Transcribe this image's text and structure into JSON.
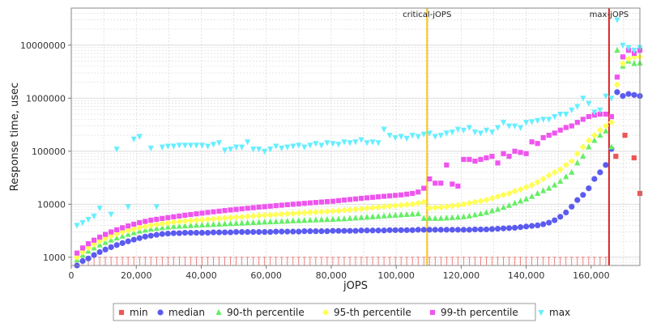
{
  "chart_data": {
    "type": "scatter",
    "xlabel": "jOPS",
    "ylabel": "Response time, usec",
    "xlim": [
      0,
      175000
    ],
    "ylim": [
      700,
      50000000
    ],
    "yscale": "log",
    "grid": true,
    "legend_placement": "bottom",
    "x_ticks": [
      0,
      20000,
      40000,
      60000,
      80000,
      100000,
      120000,
      140000,
      160000
    ],
    "x_tick_labels": [
      "0",
      "20,000",
      "40,000",
      "60,000",
      "80,000",
      "100,000",
      "120,000",
      "140,000",
      "160,000"
    ],
    "y_ticks": [
      1000,
      10000,
      100000,
      1000000,
      10000000
    ],
    "y_tick_labels": [
      "1000",
      "10000",
      "100000",
      "1000000",
      "10000000"
    ],
    "vlines": [
      {
        "label": "critical-jOPS",
        "x": 109500,
        "color": "#f5c518"
      },
      {
        "label": "max-jOPS",
        "x": 165500,
        "color": "#dd2222"
      }
    ],
    "series": [
      {
        "name": "min",
        "marker": "square",
        "color": "#ee5555",
        "x": [
          167600,
          170400,
          173200,
          175000
        ],
        "y": [
          80000,
          200000,
          75000,
          16000
        ]
      },
      {
        "name": "median",
        "marker": "circle",
        "color": "#5b5bf0",
        "x": [
          1750,
          3500,
          5250,
          7000,
          8750,
          10500,
          12250,
          14000,
          15750,
          17500,
          19250,
          21000,
          22750,
          24500,
          26250,
          28000,
          29750,
          31500,
          33250,
          35000,
          36750,
          38500,
          40250,
          42000,
          43750,
          45500,
          47250,
          49000,
          50750,
          52500,
          54250,
          56000,
          57750,
          59500,
          61250,
          63000,
          64750,
          66500,
          68250,
          70000,
          71750,
          73500,
          75250,
          77000,
          78750,
          80500,
          82250,
          84000,
          85750,
          87500,
          89250,
          91000,
          92750,
          94500,
          96250,
          98000,
          99750,
          101500,
          103250,
          105000,
          106750,
          108500,
          110250,
          112000,
          113750,
          115500,
          117250,
          119000,
          120750,
          122500,
          124250,
          126000,
          127750,
          129500,
          131250,
          133000,
          134750,
          136500,
          138250,
          140000,
          141750,
          143500,
          145250,
          147000,
          148750,
          150500,
          152250,
          154000,
          155750,
          157500,
          159250,
          161000,
          162750,
          164500,
          166250,
          168000,
          169750,
          171500,
          173250,
          175000
        ],
        "y": [
          700,
          850,
          950,
          1100,
          1250,
          1400,
          1550,
          1700,
          1850,
          2000,
          2150,
          2300,
          2450,
          2550,
          2650,
          2750,
          2800,
          2850,
          2850,
          2900,
          2900,
          2900,
          2900,
          2900,
          2950,
          2950,
          2950,
          2950,
          3000,
          3000,
          3000,
          3000,
          3000,
          3000,
          3000,
          3050,
          3050,
          3050,
          3050,
          3050,
          3100,
          3100,
          3100,
          3100,
          3100,
          3150,
          3150,
          3150,
          3150,
          3150,
          3200,
          3200,
          3200,
          3200,
          3200,
          3250,
          3250,
          3250,
          3250,
          3250,
          3300,
          3300,
          3300,
          3300,
          3300,
          3300,
          3300,
          3300,
          3300,
          3300,
          3350,
          3350,
          3350,
          3400,
          3450,
          3500,
          3550,
          3600,
          3700,
          3800,
          3900,
          4000,
          4200,
          4500,
          5000,
          5800,
          7000,
          9000,
          12000,
          15000,
          20000,
          30000,
          40000,
          55000,
          110000,
          1300000,
          1100000,
          1200000,
          1150000,
          1100000
        ]
      },
      {
        "name": "90-th percentile",
        "marker": "triangle-up",
        "color": "#66ee66",
        "x": [
          1750,
          3500,
          5250,
          7000,
          8750,
          10500,
          12250,
          14000,
          15750,
          17500,
          19250,
          21000,
          22750,
          24500,
          26250,
          28000,
          29750,
          31500,
          33250,
          35000,
          36750,
          38500,
          40250,
          42000,
          43750,
          45500,
          47250,
          49000,
          50750,
          52500,
          54250,
          56000,
          57750,
          59500,
          61250,
          63000,
          64750,
          66500,
          68250,
          70000,
          71750,
          73500,
          75250,
          77000,
          78750,
          80500,
          82250,
          84000,
          85750,
          87500,
          89250,
          91000,
          92750,
          94500,
          96250,
          98000,
          99750,
          101500,
          103250,
          105000,
          106750,
          108500,
          110250,
          112000,
          113750,
          115500,
          117250,
          119000,
          120750,
          122500,
          124250,
          126000,
          127750,
          129500,
          131250,
          133000,
          134750,
          136500,
          138250,
          140000,
          141750,
          143500,
          145250,
          147000,
          148750,
          150500,
          152250,
          154000,
          155750,
          157500,
          159250,
          161000,
          162750,
          164500,
          166250,
          168000,
          169750,
          171500,
          173250,
          175000
        ],
        "y": [
          900,
          1100,
          1300,
          1500,
          1700,
          1900,
          2100,
          2300,
          2500,
          2700,
          2900,
          3100,
          3250,
          3400,
          3500,
          3600,
          3700,
          3800,
          3850,
          3900,
          3950,
          4000,
          4050,
          4100,
          4150,
          4200,
          4250,
          4300,
          4350,
          4400,
          4450,
          4500,
          4550,
          4600,
          4650,
          4700,
          4750,
          4800,
          4850,
          4900,
          4950,
          5000,
          5050,
          5100,
          5150,
          5200,
          5250,
          5300,
          5400,
          5500,
          5600,
          5700,
          5800,
          5900,
          6000,
          6100,
          6200,
          6300,
          6400,
          6500,
          6600,
          5400,
          5400,
          5400,
          5400,
          5500,
          5600,
          5700,
          5800,
          6000,
          6300,
          6600,
          7000,
          7500,
          8000,
          8700,
          9500,
          10500,
          11500,
          12500,
          14000,
          16000,
          18000,
          20000,
          23000,
          27000,
          33000,
          40000,
          60000,
          80000,
          120000,
          160000,
          200000,
          240000,
          120000,
          8000000,
          4000000,
          5000000,
          4500000,
          4600000
        ]
      },
      {
        "name": "95-th percentile",
        "marker": "diamond",
        "color": "#ffff55",
        "x": [
          1750,
          3500,
          5250,
          7000,
          8750,
          10500,
          12250,
          14000,
          15750,
          17500,
          19250,
          21000,
          22750,
          24500,
          26250,
          28000,
          29750,
          31500,
          33250,
          35000,
          36750,
          38500,
          40250,
          42000,
          43750,
          45500,
          47250,
          49000,
          50750,
          52500,
          54250,
          56000,
          57750,
          59500,
          61250,
          63000,
          64750,
          66500,
          68250,
          70000,
          71750,
          73500,
          75250,
          77000,
          78750,
          80500,
          82250,
          84000,
          85750,
          87500,
          89250,
          91000,
          92750,
          94500,
          96250,
          98000,
          99750,
          101500,
          103250,
          105000,
          106750,
          108500,
          110250,
          112000,
          113750,
          115500,
          117250,
          119000,
          120750,
          122500,
          124250,
          126000,
          127750,
          129500,
          131250,
          133000,
          134750,
          136500,
          138250,
          140000,
          141750,
          143500,
          145250,
          147000,
          148750,
          150500,
          152250,
          154000,
          155750,
          157500,
          159250,
          161000,
          162750,
          164500,
          166250,
          168000,
          169750,
          171500,
          173250,
          175000
        ],
        "y": [
          1000,
          1250,
          1500,
          1750,
          2000,
          2250,
          2500,
          2750,
          3000,
          3200,
          3400,
          3600,
          3800,
          4000,
          4150,
          4300,
          4450,
          4600,
          4700,
          4800,
          4900,
          5000,
          5100,
          5200,
          5300,
          5400,
          5500,
          5600,
          5700,
          5800,
          5900,
          6000,
          6100,
          6200,
          6300,
          6400,
          6500,
          6600,
          6700,
          6800,
          6900,
          7000,
          7100,
          7200,
          7300,
          7400,
          7550,
          7700,
          7850,
          8000,
          8200,
          8400,
          8600,
          8800,
          9000,
          9200,
          9400,
          9600,
          9800,
          10000,
          10500,
          11000,
          8500,
          8600,
          8800,
          9000,
          9300,
          9600,
          10000,
          10500,
          11000,
          11500,
          12000,
          13000,
          14000,
          15000,
          16000,
          17500,
          19000,
          21000,
          23000,
          26000,
          30000,
          35000,
          40000,
          45000,
          55000,
          65000,
          90000,
          120000,
          160000,
          200000,
          250000,
          300000,
          350000,
          1800000,
          4500000,
          5500000,
          6000000,
          6000000
        ]
      },
      {
        "name": "99-th percentile",
        "marker": "square",
        "color": "#ee55ee",
        "x": [
          1750,
          3500,
          5250,
          7000,
          8750,
          10500,
          12250,
          14000,
          15750,
          17500,
          19250,
          21000,
          22750,
          24500,
          26250,
          28000,
          29750,
          31500,
          33250,
          35000,
          36750,
          38500,
          40250,
          42000,
          43750,
          45500,
          47250,
          49000,
          50750,
          52500,
          54250,
          56000,
          57750,
          59500,
          61250,
          63000,
          64750,
          66500,
          68250,
          70000,
          71750,
          73500,
          75250,
          77000,
          78750,
          80500,
          82250,
          84000,
          85750,
          87500,
          89250,
          91000,
          92750,
          94500,
          96250,
          98000,
          99750,
          101500,
          103250,
          105000,
          106750,
          108500,
          110250,
          112000,
          113750,
          115500,
          117250,
          119000,
          120750,
          122500,
          124250,
          126000,
          127750,
          129500,
          131250,
          133000,
          134750,
          136500,
          138250,
          140000,
          141750,
          143500,
          145250,
          147000,
          148750,
          150500,
          152250,
          154000,
          155750,
          157500,
          159250,
          161000,
          162750,
          164500,
          166250,
          168000,
          169750,
          171500,
          173250,
          175000
        ],
        "y": [
          1200,
          1500,
          1800,
          2100,
          2400,
          2700,
          3000,
          3300,
          3600,
          3900,
          4200,
          4500,
          4750,
          5000,
          5200,
          5400,
          5600,
          5800,
          6000,
          6200,
          6400,
          6600,
          6800,
          7000,
          7200,
          7400,
          7600,
          7800,
          8000,
          8200,
          8400,
          8600,
          8800,
          9000,
          9200,
          9400,
          9600,
          9800,
          10000,
          10200,
          10400,
          10600,
          10800,
          11000,
          11200,
          11400,
          11700,
          12000,
          12300,
          12600,
          12900,
          13200,
          13500,
          13800,
          14100,
          14400,
          14700,
          15000,
          15500,
          16000,
          17000,
          20000,
          30000,
          25000,
          25000,
          55000,
          24000,
          22000,
          70000,
          70000,
          65000,
          70000,
          75000,
          80000,
          60000,
          90000,
          80000,
          100000,
          95000,
          90000,
          150000,
          140000,
          180000,
          200000,
          220000,
          250000,
          280000,
          300000,
          350000,
          400000,
          450000,
          480000,
          500000,
          500000,
          450000,
          2500000,
          6000000,
          8000000,
          7000000,
          8000000
        ]
      },
      {
        "name": "max",
        "marker": "triangle-down",
        "color": "#66eeff",
        "x": [
          1750,
          3500,
          5250,
          7000,
          8750,
          12250,
          14000,
          17500,
          19250,
          21000,
          24500,
          26250,
          28000,
          29750,
          31500,
          33250,
          35000,
          36750,
          38500,
          40250,
          42000,
          43750,
          45500,
          47250,
          49000,
          50750,
          52500,
          54250,
          56000,
          57750,
          59500,
          61250,
          63000,
          64750,
          66500,
          68250,
          70000,
          71750,
          73500,
          75250,
          77000,
          78750,
          80500,
          82250,
          84000,
          85750,
          87500,
          89250,
          91000,
          92750,
          94500,
          96250,
          98000,
          99750,
          101500,
          103250,
          105000,
          106750,
          108500,
          110250,
          112000,
          113750,
          115500,
          117250,
          119000,
          120750,
          122500,
          124250,
          126000,
          127750,
          129500,
          131250,
          133000,
          134750,
          136500,
          138250,
          140000,
          141750,
          143500,
          145250,
          147000,
          148750,
          150500,
          152250,
          154000,
          155750,
          157500,
          159250,
          161000,
          162750,
          164500,
          166250,
          168000,
          169750,
          171500,
          173250,
          175000
        ],
        "y": [
          4000,
          4500,
          5200,
          6000,
          8500,
          6500,
          110000,
          9000,
          170000,
          190000,
          115000,
          9000,
          120000,
          125000,
          125000,
          130000,
          130000,
          130000,
          130000,
          130000,
          125000,
          135000,
          145000,
          105000,
          110000,
          120000,
          120000,
          150000,
          110000,
          110000,
          100000,
          110000,
          125000,
          115000,
          120000,
          125000,
          130000,
          120000,
          130000,
          140000,
          130000,
          145000,
          140000,
          135000,
          150000,
          145000,
          150000,
          165000,
          145000,
          150000,
          145000,
          260000,
          200000,
          180000,
          190000,
          175000,
          200000,
          190000,
          210000,
          220000,
          190000,
          200000,
          220000,
          230000,
          260000,
          250000,
          280000,
          230000,
          220000,
          250000,
          230000,
          280000,
          350000,
          300000,
          300000,
          280000,
          350000,
          360000,
          380000,
          400000,
          400000,
          450000,
          500000,
          500000,
          600000,
          700000,
          1000000,
          800000,
          550000,
          600000,
          1100000,
          1000000,
          30000000,
          10000000,
          9000000,
          8000000,
          9000000
        ]
      }
    ]
  }
}
